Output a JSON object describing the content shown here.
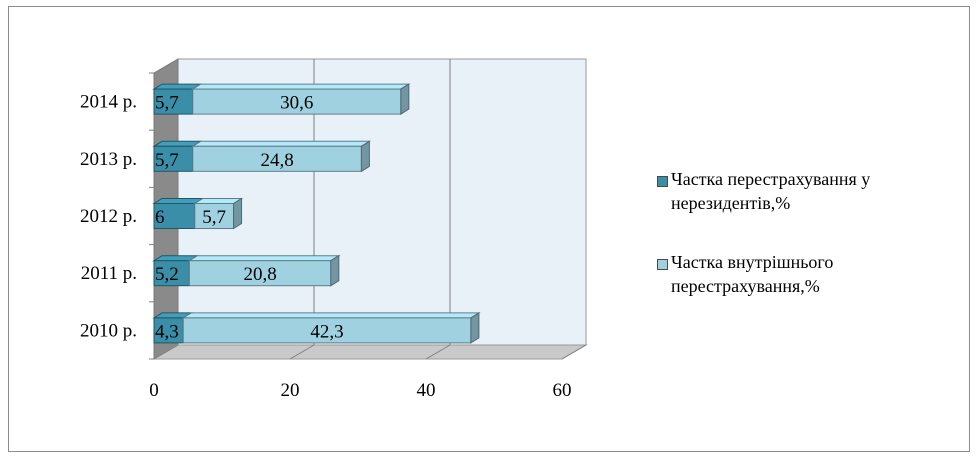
{
  "chart_data": {
    "type": "bar",
    "orientation": "horizontal",
    "stacked": true,
    "style": "3d",
    "categories": [
      "2010  р.",
      "2011 р.",
      "2012  р.",
      "2013  р.",
      "2014  р."
    ],
    "series": [
      {
        "name": "Частка перестрахування у нерезидентів,%",
        "values": [
          4.3,
          5.2,
          6,
          5.7,
          5.7
        ],
        "labels": [
          "4,3",
          "5,2",
          "6",
          "5,7",
          "5,7"
        ],
        "color": "#3a8ea8"
      },
      {
        "name": "Частка внутрішнього перестрахування,%",
        "values": [
          42.3,
          20.8,
          5.7,
          24.8,
          30.6
        ],
        "labels": [
          "42,3",
          "20,8",
          "5,7",
          "24,8",
          "30,6"
        ],
        "color": "#9fd1e1"
      }
    ],
    "xlim": [
      0,
      60
    ],
    "xticks": [
      "0",
      "20",
      "40",
      "60"
    ],
    "grid": true,
    "legend_position": "right",
    "wall_color": "#e8f0f8"
  }
}
